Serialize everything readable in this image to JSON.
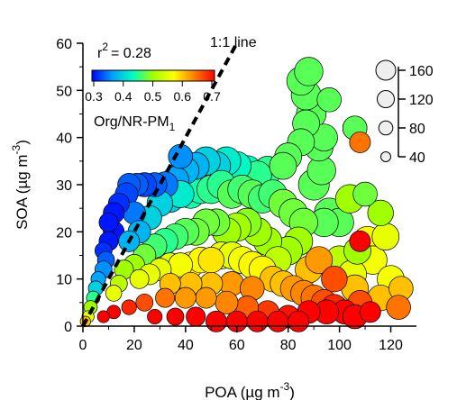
{
  "chart_data": {
    "type": "scatter",
    "title": "",
    "xlabel": "POA (µg m⁻³)",
    "xlabel_base": "POA (µg m",
    "xlabel_exp": "-3",
    "xlabel_close": ")",
    "ylabel": "SOA (µg m⁻³)",
    "ylabel_base": "SOA (µg m",
    "ylabel_exp": "-3",
    "ylabel_close": ")",
    "xlim": [
      0,
      130
    ],
    "ylim": [
      0,
      60
    ],
    "x_ticks": [
      0,
      20,
      40,
      60,
      80,
      100,
      120
    ],
    "y_ticks": [
      0,
      10,
      20,
      30,
      40,
      50,
      60
    ],
    "grid": false,
    "annotations": {
      "r2_prefix": "r",
      "r2_exp": "2",
      "r2_value": "= 0.28",
      "one_to_one_label": "1:1 line"
    },
    "one_to_one_line": {
      "x": [
        0,
        60
      ],
      "y": [
        0,
        60
      ]
    },
    "color_scale": {
      "label_base": "Org/NR-PM",
      "label_sub": "1",
      "min": 0.3,
      "max": 0.7,
      "ticks": [
        "0.3",
        "0.4",
        "0.5",
        "0.6",
        "0.7"
      ],
      "colormap": [
        "#0000ff",
        "#00a0ff",
        "#00ffc0",
        "#a0ff00",
        "#ffff00",
        "#ff8000",
        "#ff0000"
      ]
    },
    "size_legend": {
      "values": [
        160,
        120,
        80,
        40
      ],
      "labels": [
        "160",
        "120",
        "80",
        "40"
      ]
    },
    "points": [
      [
        111,
        18,
        0.57,
        120
      ],
      [
        118,
        19,
        0.55,
        100
      ],
      [
        113,
        14,
        0.56,
        110
      ],
      [
        120,
        10,
        0.56,
        100
      ],
      [
        124,
        8,
        0.6,
        80
      ],
      [
        116,
        6,
        0.6,
        90
      ],
      [
        123,
        4,
        0.64,
        80
      ],
      [
        107,
        16,
        0.5,
        100
      ],
      [
        100,
        14,
        0.52,
        110
      ],
      [
        105,
        11,
        0.55,
        110
      ],
      [
        108,
        5,
        0.66,
        80
      ],
      [
        96,
        24,
        0.47,
        120
      ],
      [
        100,
        22,
        0.47,
        110
      ],
      [
        98,
        10,
        0.66,
        90
      ],
      [
        88,
        12,
        0.6,
        100
      ],
      [
        92,
        14,
        0.62,
        100
      ],
      [
        94,
        22,
        0.47,
        110
      ],
      [
        90,
        30,
        0.47,
        130
      ],
      [
        93,
        33,
        0.47,
        110
      ],
      [
        92,
        38,
        0.47,
        110
      ],
      [
        94,
        40,
        0.47,
        100
      ],
      [
        96,
        48,
        0.47,
        80
      ],
      [
        89,
        45,
        0.47,
        120
      ],
      [
        87,
        49,
        0.47,
        120
      ],
      [
        85,
        52,
        0.47,
        110
      ],
      [
        88,
        54,
        0.47,
        110
      ],
      [
        87,
        43,
        0.47,
        100
      ],
      [
        85,
        39,
        0.47,
        100
      ],
      [
        80,
        36,
        0.47,
        100
      ],
      [
        78,
        34,
        0.47,
        100
      ],
      [
        72,
        33,
        0.45,
        110
      ],
      [
        68,
        32,
        0.45,
        110
      ],
      [
        64,
        33,
        0.43,
        120
      ],
      [
        60,
        34,
        0.43,
        110
      ],
      [
        56,
        35,
        0.42,
        110
      ],
      [
        52,
        34,
        0.4,
        110
      ],
      [
        48,
        35,
        0.4,
        110
      ],
      [
        44,
        34,
        0.38,
        100
      ],
      [
        40,
        33,
        0.38,
        100
      ],
      [
        38,
        36,
        0.36,
        80
      ],
      [
        36,
        31,
        0.37,
        100
      ],
      [
        32,
        30,
        0.35,
        90
      ],
      [
        28,
        30,
        0.34,
        80
      ],
      [
        24,
        30,
        0.33,
        80
      ],
      [
        21,
        30,
        0.34,
        70
      ],
      [
        18,
        30,
        0.34,
        70
      ],
      [
        17,
        28,
        0.33,
        70
      ],
      [
        14,
        26,
        0.32,
        60
      ],
      [
        12,
        24,
        0.31,
        60
      ],
      [
        10,
        22,
        0.31,
        50
      ],
      [
        12,
        20,
        0.31,
        60
      ],
      [
        10,
        18,
        0.31,
        50
      ],
      [
        8,
        16,
        0.32,
        40
      ],
      [
        9,
        14,
        0.34,
        40
      ],
      [
        8,
        12,
        0.36,
        40
      ],
      [
        6,
        10,
        0.37,
        30
      ],
      [
        5,
        8,
        0.4,
        30
      ],
      [
        4,
        6,
        0.45,
        25
      ],
      [
        3,
        4,
        0.5,
        25
      ],
      [
        2,
        2,
        0.55,
        20
      ],
      [
        1,
        1,
        0.6,
        15
      ],
      [
        20,
        24,
        0.35,
        70
      ],
      [
        22,
        20,
        0.38,
        70
      ],
      [
        18,
        18,
        0.38,
        60
      ],
      [
        26,
        23,
        0.4,
        80
      ],
      [
        30,
        26,
        0.4,
        90
      ],
      [
        34,
        27,
        0.4,
        100
      ],
      [
        38,
        28,
        0.42,
        100
      ],
      [
        42,
        28,
        0.44,
        110
      ],
      [
        46,
        29,
        0.44,
        110
      ],
      [
        50,
        29,
        0.45,
        110
      ],
      [
        54,
        30,
        0.45,
        110
      ],
      [
        58,
        28,
        0.47,
        110
      ],
      [
        62,
        29,
        0.46,
        110
      ],
      [
        66,
        28,
        0.47,
        110
      ],
      [
        70,
        27,
        0.46,
        110
      ],
      [
        74,
        28,
        0.46,
        110
      ],
      [
        78,
        26,
        0.48,
        110
      ],
      [
        82,
        24,
        0.48,
        110
      ],
      [
        86,
        22,
        0.48,
        110
      ],
      [
        84,
        18,
        0.5,
        110
      ],
      [
        80,
        16,
        0.5,
        110
      ],
      [
        76,
        14,
        0.52,
        100
      ],
      [
        72,
        18,
        0.5,
        110
      ],
      [
        68,
        20,
        0.5,
        110
      ],
      [
        64,
        22,
        0.49,
        110
      ],
      [
        60,
        21,
        0.5,
        110
      ],
      [
        56,
        20,
        0.5,
        110
      ],
      [
        52,
        22,
        0.48,
        100
      ],
      [
        48,
        22,
        0.48,
        100
      ],
      [
        44,
        20,
        0.48,
        100
      ],
      [
        40,
        20,
        0.47,
        100
      ],
      [
        36,
        19,
        0.46,
        90
      ],
      [
        32,
        18,
        0.45,
        90
      ],
      [
        28,
        17,
        0.46,
        80
      ],
      [
        24,
        15,
        0.48,
        70
      ],
      [
        20,
        13,
        0.5,
        60
      ],
      [
        16,
        12,
        0.5,
        50
      ],
      [
        14,
        9,
        0.52,
        40
      ],
      [
        12,
        7,
        0.55,
        35
      ],
      [
        22,
        10,
        0.55,
        50
      ],
      [
        26,
        11,
        0.55,
        60
      ],
      [
        30,
        12,
        0.55,
        70
      ],
      [
        34,
        13,
        0.55,
        80
      ],
      [
        38,
        13,
        0.56,
        80
      ],
      [
        42,
        13,
        0.57,
        90
      ],
      [
        46,
        14,
        0.57,
        90
      ],
      [
        50,
        14,
        0.58,
        90
      ],
      [
        54,
        15,
        0.55,
        100
      ],
      [
        58,
        15,
        0.55,
        100
      ],
      [
        62,
        14,
        0.56,
        100
      ],
      [
        66,
        13,
        0.57,
        100
      ],
      [
        70,
        12,
        0.57,
        100
      ],
      [
        74,
        10,
        0.6,
        90
      ],
      [
        78,
        9,
        0.6,
        90
      ],
      [
        82,
        8,
        0.62,
        90
      ],
      [
        86,
        7,
        0.63,
        90
      ],
      [
        90,
        6,
        0.64,
        90
      ],
      [
        94,
        5,
        0.66,
        90
      ],
      [
        98,
        4,
        0.68,
        90
      ],
      [
        102,
        3,
        0.7,
        80
      ],
      [
        106,
        2,
        0.7,
        80
      ],
      [
        95,
        3,
        0.7,
        80
      ],
      [
        88,
        3,
        0.7,
        70
      ],
      [
        80,
        2,
        0.69,
        70
      ],
      [
        72,
        3,
        0.67,
        70
      ],
      [
        64,
        4,
        0.65,
        70
      ],
      [
        56,
        5,
        0.63,
        70
      ],
      [
        48,
        6,
        0.62,
        60
      ],
      [
        40,
        6,
        0.62,
        60
      ],
      [
        32,
        6,
        0.64,
        50
      ],
      [
        24,
        5,
        0.66,
        40
      ],
      [
        18,
        4,
        0.68,
        30
      ],
      [
        12,
        3,
        0.7,
        25
      ],
      [
        8,
        2,
        0.7,
        20
      ],
      [
        28,
        2,
        0.7,
        30
      ],
      [
        36,
        2,
        0.7,
        40
      ],
      [
        44,
        2,
        0.7,
        50
      ],
      [
        52,
        1,
        0.7,
        60
      ],
      [
        60,
        1,
        0.7,
        60
      ],
      [
        68,
        1,
        0.7,
        60
      ],
      [
        76,
        1,
        0.7,
        60
      ],
      [
        84,
        1,
        0.7,
        60
      ],
      [
        58,
        9,
        0.62,
        80
      ],
      [
        66,
        8,
        0.63,
        80
      ],
      [
        50,
        9,
        0.6,
        70
      ],
      [
        42,
        9,
        0.6,
        70
      ],
      [
        34,
        9,
        0.6,
        60
      ],
      [
        106,
        8,
        0.6,
        100
      ],
      [
        104,
        27,
        0.5,
        110
      ],
      [
        110,
        28,
        0.48,
        80
      ],
      [
        116,
        24,
        0.5,
        90
      ],
      [
        106,
        42,
        0.47,
        80
      ],
      [
        106,
        42,
        0.47,
        80
      ],
      [
        108,
        39,
        0.64,
        60
      ],
      [
        108,
        18,
        0.7,
        60
      ],
      [
        112,
        3,
        0.7,
        60
      ]
    ]
  }
}
